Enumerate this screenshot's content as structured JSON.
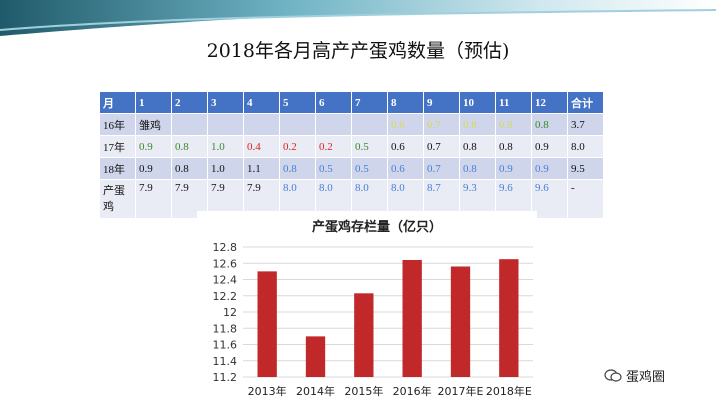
{
  "slide": {
    "title": "2018年各月高产产蛋鸡数量（预估)"
  },
  "table": {
    "header": [
      "月",
      "1",
      "2",
      "3",
      "4",
      "5",
      "6",
      "7",
      "8",
      "9",
      "10",
      "11",
      "12",
      "合计"
    ],
    "rows": [
      [
        "16年",
        "雏鸡",
        "",
        "",
        "",
        "",
        "",
        "",
        "0.6",
        "0.7",
        "0.8",
        "0.9",
        "0.8",
        "3.7"
      ],
      [
        "17年",
        "0.9",
        "0.8",
        "1.0",
        "0.4",
        "0.2",
        "0.2",
        "0.5",
        "0.6",
        "0.7",
        "0.8",
        "0.8",
        "0.9",
        "8.0"
      ],
      [
        "18年",
        "0.9",
        "0.8",
        "1.0",
        "1.1",
        "0.8",
        "0.5",
        "0.5",
        "0.6",
        "0.7",
        "0.8",
        "0.9",
        "0.9",
        "9.5"
      ],
      [
        "产蛋鸡",
        "7.9",
        "7.9",
        "7.9",
        "7.9",
        "8.0",
        "8.0",
        "8.0",
        "8.0",
        "8.7",
        "9.3",
        "9.6",
        "9.6",
        "-"
      ]
    ],
    "cell_colors": [
      [
        "#111111",
        "#111111",
        "#111111",
        "#111111",
        "#111111",
        "#111111",
        "#111111",
        "#111111",
        "#d9d95a",
        "#d9d95a",
        "#d9d95a",
        "#d9d95a",
        "#3a8a2a",
        "#111111"
      ],
      [
        "#111111",
        "#3a8a2a",
        "#3a8a2a",
        "#3a8a2a",
        "#e02020",
        "#e02020",
        "#e02020",
        "#3a8a2a",
        "#111111",
        "#111111",
        "#111111",
        "#111111",
        "#111111",
        "#111111"
      ],
      [
        "#111111",
        "#111111",
        "#111111",
        "#111111",
        "#111111",
        "#4a7fd8",
        "#4a7fd8",
        "#4a7fd8",
        "#4a7fd8",
        "#4a7fd8",
        "#4a7fd8",
        "#4a7fd8",
        "#4a7fd8",
        "#111111"
      ],
      [
        "#111111",
        "#111111",
        "#111111",
        "#111111",
        "#111111",
        "#4a7fd8",
        "#4a7fd8",
        "#4a7fd8",
        "#4a7fd8",
        "#4a7fd8",
        "#4a7fd8",
        "#4a7fd8",
        "#4a7fd8",
        "#111111"
      ]
    ],
    "header_bg": "#4472c4"
  },
  "chart_data": {
    "type": "bar",
    "title": "产蛋鸡存栏量（亿只）",
    "categories": [
      "2013年",
      "2014年",
      "2015年",
      "2016年",
      "2017年E",
      "2018年E"
    ],
    "values": [
      12.5,
      11.7,
      12.23,
      12.64,
      12.56,
      12.65
    ],
    "ylim": [
      11.2,
      12.8
    ],
    "yticks": [
      "12.8",
      "12.6",
      "12.4",
      "12.2",
      "12",
      "11.8",
      "11.6",
      "11.4",
      "11.2"
    ],
    "grid": true,
    "bar_color": "#c0282a"
  },
  "brand": {
    "label": "蛋鸡圈",
    "icon": "chat-bubble-icon"
  }
}
